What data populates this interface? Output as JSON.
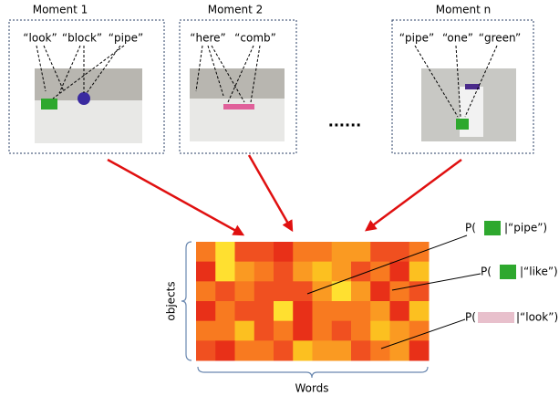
{
  "moments": [
    {
      "title": "Moment 1",
      "words": [
        "“look”",
        "“block”",
        "“pipe”"
      ]
    },
    {
      "title": "Moment 2",
      "words": [
        "“here”",
        "“comb”"
      ]
    },
    {
      "title": "Moment n",
      "words": [
        "“pipe”",
        "“one”",
        "“green”"
      ]
    }
  ],
  "ellipsis": "......",
  "matrix": {
    "y_label": "objects",
    "x_label": "Words"
  },
  "probabilities": [
    {
      "prefix": "P(",
      "suffix": "|“pipe”)"
    },
    {
      "prefix": "P(",
      "suffix": "|“like”)"
    },
    {
      "prefix": "P(",
      "suffix": "|“look”)"
    }
  ]
}
